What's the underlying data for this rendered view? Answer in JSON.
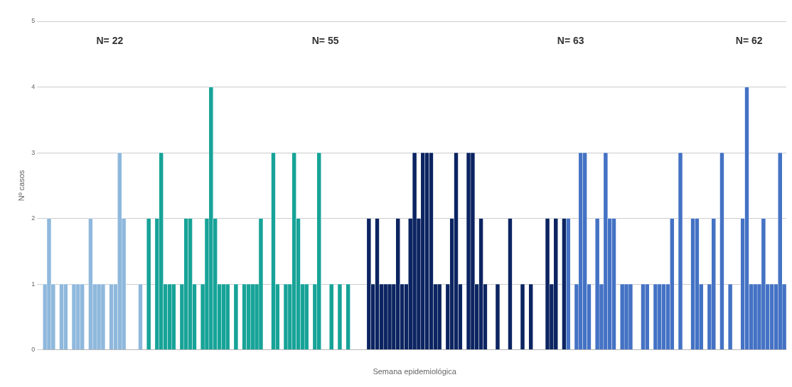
{
  "chart_data": {
    "type": "bar",
    "xlabel": "Semana epidemiológica",
    "ylabel": "Nº casos",
    "annotations": [
      "N= 22",
      "N= 55",
      "N= 63",
      "N= 62"
    ],
    "categories": [
      null,
      null,
      null,
      null,
      null,
      null,
      null,
      null,
      null,
      null,
      null,
      null,
      null,
      null,
      null,
      null,
      null,
      null,
      null,
      null,
      null,
      null,
      null,
      null,
      null,
      null,
      null,
      null,
      null,
      null,
      null,
      null,
      null,
      null,
      null,
      null,
      null,
      null,
      null,
      null,
      null,
      null,
      null,
      null,
      null,
      null,
      null,
      null,
      null,
      null,
      null,
      null,
      null,
      null,
      null,
      null,
      null,
      null,
      null,
      null,
      null,
      null,
      null,
      null,
      null,
      null,
      null,
      null,
      null,
      null,
      null,
      null,
      null,
      null,
      null,
      null,
      null,
      null,
      null,
      null,
      null,
      null,
      null,
      null,
      null,
      null,
      null,
      null,
      null,
      null,
      null,
      null,
      null,
      null,
      null,
      null,
      null,
      null,
      null,
      null,
      null,
      null,
      null,
      null,
      null,
      null,
      null,
      null,
      null,
      null,
      null,
      null,
      null,
      null,
      null,
      null,
      null,
      null,
      null,
      null,
      null,
      null,
      null,
      null,
      null,
      null,
      null,
      null,
      null,
      null,
      null,
      null,
      null,
      null,
      null,
      null,
      null,
      null,
      null,
      null,
      null,
      null,
      null,
      null,
      null,
      null,
      null,
      null,
      null,
      null,
      null,
      null,
      null,
      null,
      null,
      null,
      null,
      null,
      null,
      null,
      null,
      null,
      null,
      null,
      null,
      null,
      null,
      null,
      null,
      null,
      null,
      null,
      null,
      null,
      null,
      null,
      null,
      null,
      null
    ],
    "values": [
      1,
      2,
      1,
      0,
      1,
      1,
      0,
      1,
      1,
      1,
      0,
      2,
      1,
      1,
      1,
      0,
      1,
      1,
      3,
      2,
      0,
      0,
      0,
      1,
      0,
      2,
      0,
      2,
      3,
      1,
      1,
      1,
      0,
      1,
      2,
      2,
      1,
      0,
      1,
      2,
      4,
      2,
      1,
      1,
      1,
      0,
      1,
      0,
      1,
      1,
      1,
      1,
      2,
      0,
      0,
      3,
      1,
      0,
      1,
      1,
      3,
      2,
      1,
      1,
      0,
      1,
      3,
      0,
      0,
      1,
      0,
      1,
      0,
      1,
      0,
      0,
      0,
      0,
      2,
      1,
      2,
      1,
      1,
      1,
      1,
      2,
      1,
      1,
      2,
      3,
      2,
      3,
      3,
      3,
      1,
      1,
      0,
      1,
      2,
      3,
      1,
      0,
      3,
      3,
      1,
      2,
      1,
      0,
      0,
      1,
      0,
      0,
      2,
      0,
      0,
      1,
      0,
      1,
      0,
      0,
      0,
      2,
      1,
      2,
      0,
      2,
      2,
      0,
      1,
      3,
      3,
      1,
      0,
      2,
      1,
      3,
      2,
      2,
      0,
      1,
      1,
      1,
      0,
      0,
      1,
      1,
      0,
      1,
      1,
      1,
      1,
      2,
      0,
      3,
      0,
      0,
      2,
      2,
      1,
      0,
      1,
      2,
      0,
      3,
      0,
      1,
      0,
      0,
      2,
      4,
      1,
      1,
      1,
      2,
      1,
      1,
      1,
      3,
      1
    ],
    "colors": [
      "#8fb8dc",
      "#8fb8dc",
      "#8fb8dc",
      "#8fb8dc",
      "#8fb8dc",
      "#8fb8dc",
      "#8fb8dc",
      "#8fb8dc",
      "#8fb8dc",
      "#8fb8dc",
      "#8fb8dc",
      "#8fb8dc",
      "#8fb8dc",
      "#8fb8dc",
      "#8fb8dc",
      "#8fb8dc",
      "#8fb8dc",
      "#8fb8dc",
      "#8fb8dc",
      "#8fb8dc",
      "#8fb8dc",
      "#8fb8dc",
      "#8fb8dc",
      "#8fb8dc",
      "#8fb8dc",
      "#17a398",
      "#17a398",
      "#17a398",
      "#17a398",
      "#17a398",
      "#17a398",
      "#17a398",
      "#17a398",
      "#17a398",
      "#17a398",
      "#17a398",
      "#17a398",
      "#17a398",
      "#17a398",
      "#17a398",
      "#17a398",
      "#17a398",
      "#17a398",
      "#17a398",
      "#17a398",
      "#17a398",
      "#17a398",
      "#17a398",
      "#17a398",
      "#17a398",
      "#17a398",
      "#17a398",
      "#17a398",
      "#17a398",
      "#17a398",
      "#17a398",
      "#17a398",
      "#17a398",
      "#17a398",
      "#17a398",
      "#17a398",
      "#17a398",
      "#17a398",
      "#17a398",
      "#17a398",
      "#17a398",
      "#17a398",
      "#17a398",
      "#17a398",
      "#17a398",
      "#17a398",
      "#17a398",
      "#17a398",
      "#17a398",
      "#17a398",
      "#17a398",
      "#17a398",
      "#17a398",
      "#0c2461",
      "#0c2461",
      "#0c2461",
      "#0c2461",
      "#0c2461",
      "#0c2461",
      "#0c2461",
      "#0c2461",
      "#0c2461",
      "#0c2461",
      "#0c2461",
      "#0c2461",
      "#0c2461",
      "#0c2461",
      "#0c2461",
      "#0c2461",
      "#0c2461",
      "#0c2461",
      "#0c2461",
      "#0c2461",
      "#0c2461",
      "#0c2461",
      "#0c2461",
      "#0c2461",
      "#0c2461",
      "#0c2461",
      "#0c2461",
      "#0c2461",
      "#0c2461",
      "#0c2461",
      "#0c2461",
      "#0c2461",
      "#0c2461",
      "#0c2461",
      "#0c2461",
      "#0c2461",
      "#0c2461",
      "#0c2461",
      "#0c2461",
      "#0c2461",
      "#0c2461",
      "#0c2461",
      "#0c2461",
      "#0c2461",
      "#0c2461",
      "#0c2461",
      "#0c2461",
      "#0c2461",
      "#4472c4",
      "#4472c4",
      "#4472c4",
      "#4472c4",
      "#4472c4",
      "#4472c4",
      "#4472c4",
      "#4472c4",
      "#4472c4",
      "#4472c4",
      "#4472c4",
      "#4472c4",
      "#4472c4",
      "#4472c4",
      "#4472c4",
      "#4472c4",
      "#4472c4",
      "#4472c4",
      "#4472c4",
      "#4472c4",
      "#4472c4",
      "#4472c4",
      "#4472c4",
      "#4472c4",
      "#4472c4",
      "#4472c4",
      "#4472c4",
      "#4472c4",
      "#4472c4",
      "#4472c4",
      "#4472c4",
      "#4472c4",
      "#4472c4",
      "#4472c4",
      "#4472c4",
      "#4472c4",
      "#4472c4",
      "#4472c4",
      "#4472c4",
      "#4472c4",
      "#4472c4",
      "#4472c4",
      "#4472c4",
      "#4472c4",
      "#4472c4",
      "#4472c4",
      "#4472c4",
      "#4472c4",
      "#4472c4",
      "#4472c4",
      "#4472c4",
      "#4472c4",
      "#4472c4"
    ],
    "ylim": [
      0,
      5
    ],
    "yticks": [
      0,
      1,
      2,
      3,
      4,
      5
    ],
    "grid": "y"
  }
}
